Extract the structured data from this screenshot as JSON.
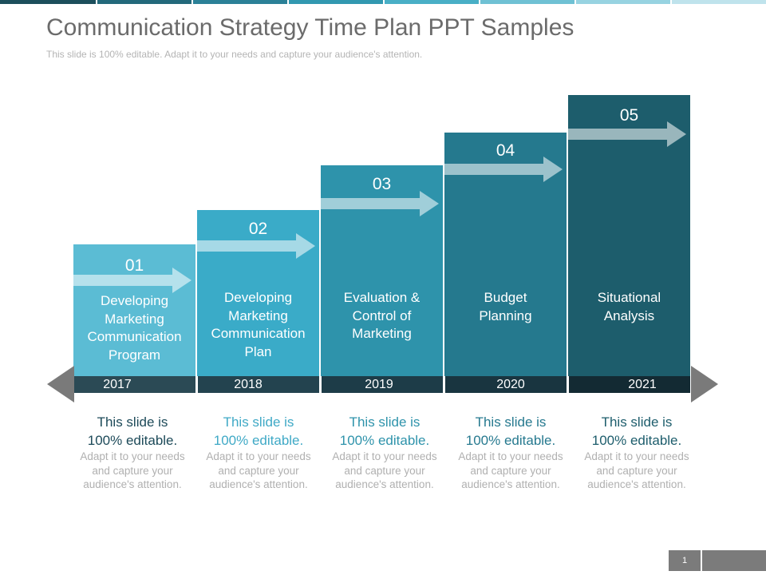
{
  "title": "Communication Strategy Time Plan PPT Samples",
  "subtitle": "This slide is 100% editable. Adapt it to your needs and capture your audience's attention.",
  "steps": [
    {
      "number": "01",
      "label_lines": [
        "Developing",
        "Marketing",
        "Communication",
        "Program"
      ],
      "year": "2017",
      "color": "#5bbcd4",
      "band_color": "#2b4a55",
      "desc_head_lines": [
        "This slide is",
        "100% editable."
      ],
      "desc_body_lines": [
        "Adapt it to your needs",
        "and capture your",
        "audience's attention."
      ],
      "head_color": "#1d4a59"
    },
    {
      "number": "02",
      "label_lines": [
        "Developing",
        "Marketing",
        "Communication",
        "Plan"
      ],
      "year": "2018",
      "color": "#3aabc8",
      "band_color": "#23434f",
      "desc_head_lines": [
        "This slide is",
        "100% editable."
      ],
      "desc_body_lines": [
        "Adapt it to your needs",
        "and capture your",
        "audience's attention."
      ],
      "head_color": "#3fa9c6"
    },
    {
      "number": "03",
      "label_lines": [
        "Evaluation &",
        "Control of",
        "Marketing"
      ],
      "year": "2019",
      "color": "#2e93ab",
      "band_color": "#1d3c48",
      "desc_head_lines": [
        "This slide is",
        "100% editable."
      ],
      "desc_body_lines": [
        "Adapt it to your needs",
        "and capture your",
        "audience's attention."
      ],
      "head_color": "#2e93ab"
    },
    {
      "number": "04",
      "label_lines": [
        "Budget",
        "Planning"
      ],
      "year": "2020",
      "color": "#25798e",
      "band_color": "#193540",
      "desc_head_lines": [
        "This slide is",
        "100% editable."
      ],
      "desc_body_lines": [
        "Adapt it to your needs",
        "and capture your",
        "audience's attention."
      ],
      "head_color": "#26798f"
    },
    {
      "number": "05",
      "label_lines": [
        "Situational",
        "Analysis"
      ],
      "year": "2021",
      "color": "#1d5d6c",
      "band_color": "#132a33",
      "desc_head_lines": [
        "This slide is",
        "100% editable."
      ],
      "desc_body_lines": [
        "Adapt it to your needs",
        "and capture your",
        "audience's attention."
      ],
      "head_color": "#1d5d6c"
    }
  ],
  "top_bar_colors": [
    "#1c4f5c",
    "#23697b",
    "#2b8197",
    "#3298b0",
    "#49afc6",
    "#6fc1d4",
    "#97d3e1",
    "#bfe3ec"
  ],
  "page_number": "1"
}
